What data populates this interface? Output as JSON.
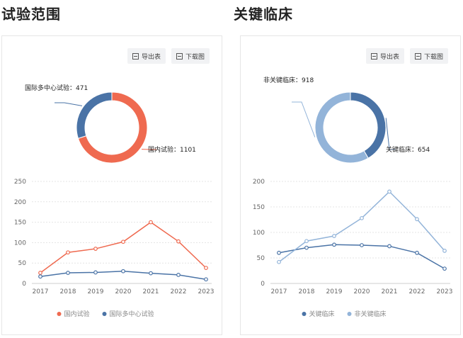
{
  "sections": [
    {
      "title": "试验范围",
      "toolbar": {
        "export_label": "导出表",
        "download_label": "下载图"
      },
      "donut": {
        "slices": [
          {
            "name": "国内试验",
            "value": 1101,
            "color": "#ef6a50",
            "label": "国内试验：1101"
          },
          {
            "name": "国际多中心试验",
            "value": 471,
            "color": "#4a73a6",
            "label": "国际多中心试验：471"
          }
        ]
      },
      "chart_data": {
        "type": "line",
        "categories": [
          "2017",
          "2018",
          "2019",
          "2020",
          "2021",
          "2022",
          "2023"
        ],
        "yticks": [
          0,
          50,
          100,
          150,
          200,
          250
        ],
        "ylim": [
          0,
          250
        ],
        "grid": true,
        "legend_position": "bottom",
        "series": [
          {
            "name": "国内试验",
            "color": "#ef6a50",
            "values": [
              26,
              76,
              85,
              102,
              150,
              103,
              38
            ]
          },
          {
            "name": "国际多中心试验",
            "color": "#4a73a6",
            "values": [
              17,
              26,
              27,
              30,
              25,
              21,
              10
            ]
          }
        ]
      }
    },
    {
      "title": "关键临床",
      "toolbar": {
        "export_label": "导出表",
        "download_label": "下载图"
      },
      "donut": {
        "slices": [
          {
            "name": "关键临床",
            "value": 654,
            "color": "#4a73a6",
            "label": "关键临床：654"
          },
          {
            "name": "非关键临床",
            "value": 918,
            "color": "#93b4d9",
            "label": "非关键临床：918"
          }
        ]
      },
      "chart_data": {
        "type": "line",
        "categories": [
          "2017",
          "2018",
          "2019",
          "2020",
          "2021",
          "2022",
          "2023"
        ],
        "yticks": [
          0,
          50,
          100,
          150,
          200
        ],
        "ylim": [
          0,
          200
        ],
        "grid": true,
        "legend_position": "bottom",
        "series": [
          {
            "name": "关键临床",
            "color": "#4a73a6",
            "values": [
              60,
              70,
              76,
              75,
              73,
              60,
              29
            ]
          },
          {
            "name": "非关键临床",
            "color": "#93b4d9",
            "values": [
              42,
              83,
              93,
              128,
              180,
              126,
              64
            ]
          }
        ]
      }
    }
  ]
}
